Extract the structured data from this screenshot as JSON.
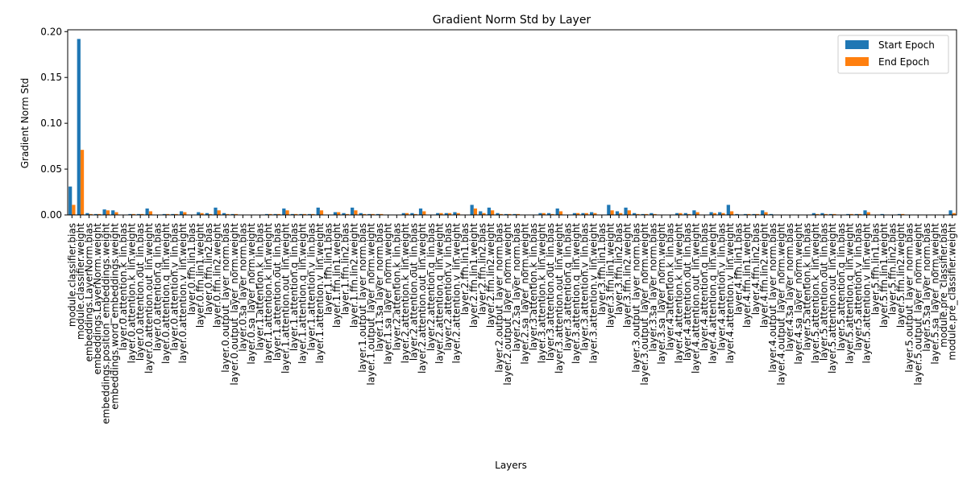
{
  "chart_data": {
    "type": "bar",
    "title": "Gradient Norm Std by Layer",
    "xlabel": "Layers",
    "ylabel": "Gradient Norm Std",
    "ylim": [
      0,
      0.202
    ],
    "yticks": [
      0.0,
      0.05,
      0.1,
      0.15,
      0.2
    ],
    "ytick_labels": [
      "0.00",
      "0.05",
      "0.10",
      "0.15",
      "0.20"
    ],
    "grid": false,
    "legend_position": "top-right",
    "colors": {
      "start": "#1f77b4",
      "end": "#ff7f0e"
    },
    "categories": [
      "module.classifier.bias",
      "module.classifier.weight",
      "embeddings.LayerNorm.bias",
      "embeddings.LayerNorm.weight",
      "embeddings.position_embeddings.weight",
      "embeddings.word_embeddings.weight",
      "layer.0.attention.k_lin.bias",
      "layer.0.attention.k_lin.weight",
      "layer.0.attention.out_lin.bias",
      "layer.0.attention.out_lin.weight",
      "layer.0.attention.q_lin.bias",
      "layer.0.attention.q_lin.weight",
      "layer.0.attention.v_lin.bias",
      "layer.0.attention.v_lin.weight",
      "layer.0.ffn.lin1.bias",
      "layer.0.ffn.lin1.weight",
      "layer.0.ffn.lin2.bias",
      "layer.0.ffn.lin2.weight",
      "layer.0.output_layer_norm.bias",
      "layer.0.output_layer_norm.weight",
      "layer.0.sa_layer_norm.bias",
      "layer.0.sa_layer_norm.weight",
      "layer.1.attention.k_lin.bias",
      "layer.1.attention.k_lin.weight",
      "layer.1.attention.out_lin.bias",
      "layer.1.attention.out_lin.weight",
      "layer.1.attention.q_lin.bias",
      "layer.1.attention.q_lin.weight",
      "layer.1.attention.v_lin.bias",
      "layer.1.attention.v_lin.weight",
      "layer.1.ffn.lin1.bias",
      "layer.1.ffn.lin1.weight",
      "layer.1.ffn.lin2.bias",
      "layer.1.ffn.lin2.weight",
      "layer.1.output_layer_norm.bias",
      "layer.1.output_layer_norm.weight",
      "layer.1.sa_layer_norm.bias",
      "layer.1.sa_layer_norm.weight",
      "layer.2.attention.k_lin.bias",
      "layer.2.attention.k_lin.weight",
      "layer.2.attention.out_lin.bias",
      "layer.2.attention.out_lin.weight",
      "layer.2.attention.q_lin.bias",
      "layer.2.attention.q_lin.weight",
      "layer.2.attention.v_lin.bias",
      "layer.2.attention.v_lin.weight",
      "layer.2.ffn.lin1.bias",
      "layer.2.ffn.lin1.weight",
      "layer.2.ffn.lin2.bias",
      "layer.2.ffn.lin2.weight",
      "layer.2.output_layer_norm.bias",
      "layer.2.output_layer_norm.weight",
      "layer.2.sa_layer_norm.bias",
      "layer.2.sa_layer_norm.weight",
      "layer.3.attention.k_lin.bias",
      "layer.3.attention.k_lin.weight",
      "layer.3.attention.out_lin.bias",
      "layer.3.attention.out_lin.weight",
      "layer.3.attention.q_lin.bias",
      "layer.3.attention.q_lin.weight",
      "layer.3.attention.v_lin.bias",
      "layer.3.attention.v_lin.weight",
      "layer.3.ffn.lin1.bias",
      "layer.3.ffn.lin1.weight",
      "layer.3.ffn.lin2.bias",
      "layer.3.ffn.lin2.weight",
      "layer.3.output_layer_norm.bias",
      "layer.3.output_layer_norm.weight",
      "layer.3.sa_layer_norm.bias",
      "layer.3.sa_layer_norm.weight",
      "layer.4.attention.k_lin.bias",
      "layer.4.attention.k_lin.weight",
      "layer.4.attention.out_lin.bias",
      "layer.4.attention.out_lin.weight",
      "layer.4.attention.q_lin.bias",
      "layer.4.attention.q_lin.weight",
      "layer.4.attention.v_lin.bias",
      "layer.4.attention.v_lin.weight",
      "layer.4.ffn.lin1.bias",
      "layer.4.ffn.lin1.weight",
      "layer.4.ffn.lin2.bias",
      "layer.4.ffn.lin2.weight",
      "layer.4.output_layer_norm.bias",
      "layer.4.output_layer_norm.weight",
      "layer.4.sa_layer_norm.bias",
      "layer.4.sa_layer_norm.weight",
      "layer.5.attention.k_lin.bias",
      "layer.5.attention.k_lin.weight",
      "layer.5.attention.out_lin.bias",
      "layer.5.attention.out_lin.weight",
      "layer.5.attention.q_lin.bias",
      "layer.5.attention.q_lin.weight",
      "layer.5.attention.v_lin.bias",
      "layer.5.attention.v_lin.weight",
      "layer.5.ffn.lin1.bias",
      "layer.5.ffn.lin1.weight",
      "layer.5.ffn.lin2.bias",
      "layer.5.ffn.lin2.weight",
      "layer.5.output_layer_norm.bias",
      "layer.5.output_layer_norm.weight",
      "layer.5.sa_layer_norm.bias",
      "layer.5.sa_layer_norm.weight",
      "module.pre_classifier.bias",
      "module.pre_classifier.weight"
    ],
    "series": [
      {
        "name": "Start Epoch",
        "values": [
          0.031,
          0.192,
          0.002,
          0.001,
          0.006,
          0.005,
          0.0,
          0.001,
          0.001,
          0.007,
          0.0,
          0.001,
          0.001,
          0.004,
          0.0,
          0.003,
          0.002,
          0.008,
          0.002,
          0.001,
          0.0,
          0.0,
          0.0,
          0.001,
          0.001,
          0.007,
          0.001,
          0.001,
          0.001,
          0.008,
          0.0,
          0.003,
          0.002,
          0.008,
          0.002,
          0.001,
          0.001,
          0.0,
          0.0,
          0.002,
          0.002,
          0.007,
          0.0,
          0.002,
          0.002,
          0.003,
          0.0,
          0.011,
          0.004,
          0.008,
          0.002,
          0.001,
          0.001,
          0.0,
          0.0,
          0.002,
          0.002,
          0.007,
          0.0,
          0.002,
          0.002,
          0.003,
          0.0,
          0.011,
          0.004,
          0.008,
          0.002,
          0.001,
          0.002,
          0.0,
          0.0,
          0.002,
          0.002,
          0.005,
          0.0,
          0.003,
          0.003,
          0.011,
          0.001,
          0.001,
          0.001,
          0.005,
          0.001,
          0.0,
          0.0,
          0.0,
          0.0,
          0.002,
          0.002,
          0.001,
          0.0,
          0.001,
          0.001,
          0.005,
          0.0,
          0.001,
          0.0,
          0.001,
          0.0,
          0.0,
          0.0,
          0.0,
          0.0,
          0.005
        ]
      },
      {
        "name": "End Epoch",
        "values": [
          0.011,
          0.071,
          0.001,
          0.001,
          0.005,
          0.003,
          0.0,
          0.001,
          0.001,
          0.004,
          0.0,
          0.001,
          0.001,
          0.003,
          0.0,
          0.002,
          0.001,
          0.005,
          0.001,
          0.001,
          0.0,
          0.0,
          0.0,
          0.001,
          0.001,
          0.005,
          0.001,
          0.001,
          0.001,
          0.005,
          0.0,
          0.003,
          0.001,
          0.005,
          0.001,
          0.001,
          0.001,
          0.0,
          0.0,
          0.002,
          0.001,
          0.004,
          0.0,
          0.002,
          0.002,
          0.002,
          0.0,
          0.007,
          0.002,
          0.005,
          0.001,
          0.001,
          0.001,
          0.0,
          0.0,
          0.002,
          0.001,
          0.004,
          0.0,
          0.002,
          0.002,
          0.002,
          0.0,
          0.005,
          0.002,
          0.005,
          0.001,
          0.001,
          0.001,
          0.0,
          0.0,
          0.002,
          0.001,
          0.003,
          0.0,
          0.002,
          0.002,
          0.004,
          0.0,
          0.001,
          0.001,
          0.003,
          0.0,
          0.0,
          0.0,
          0.0,
          0.0,
          0.001,
          0.001,
          0.001,
          0.0,
          0.001,
          0.001,
          0.003,
          0.0,
          0.0,
          0.0,
          0.001,
          0.0,
          0.0,
          0.0,
          0.0,
          0.0,
          0.002
        ]
      }
    ]
  }
}
